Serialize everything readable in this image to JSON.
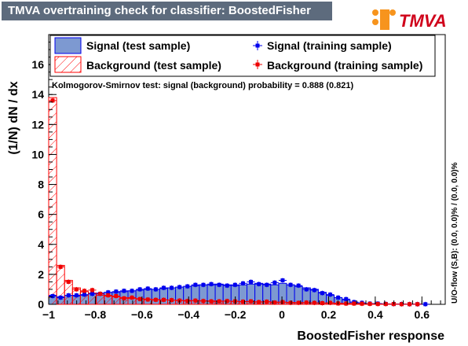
{
  "title": "TMVA overtraining check for classifier: BoostedFisher",
  "logo_text": "TMVA",
  "colors": {
    "signal_fill": "#7d99d1",
    "signal_line": "#0000ee",
    "background_hatch": "#ff0000",
    "training_signal": "#0000ee",
    "training_background": "#ee0000",
    "title_bg": "#5d6b7d"
  },
  "chart_data": {
    "type": "bar",
    "xlabel": "BoostedFisher response",
    "ylabel": "(1/N) dN / dx",
    "xlim": [
      -1.0,
      0.7
    ],
    "ylim": [
      0,
      18
    ],
    "xticks": [
      -1,
      -0.8,
      -0.6,
      -0.4,
      -0.2,
      0,
      0.2,
      0.4,
      0.6
    ],
    "xtick_labels": [
      "−1",
      "−0.8",
      "−0.6",
      "−0.4",
      "−0.2",
      "0",
      "0.2",
      "0.4",
      "0.6"
    ],
    "yticks": [
      0,
      2,
      4,
      6,
      8,
      10,
      12,
      14,
      16
    ],
    "ytick_labels": [
      "0",
      "2",
      "4",
      "6",
      "8",
      "10",
      "12",
      "14",
      "16"
    ],
    "bins": {
      "start": -1.0,
      "width": 0.034,
      "count": 50
    },
    "legend_position": "top",
    "legend": [
      {
        "label": "Signal (test sample)",
        "style": "filled"
      },
      {
        "label": "Signal (training sample)",
        "style": "marker-blue"
      },
      {
        "label": "Background (test sample)",
        "style": "hatched"
      },
      {
        "label": "Background (training sample)",
        "style": "marker-red"
      }
    ],
    "ks_text": "Kolmogorov-Smirnov test: signal (background) probability = 0.888 (0.821)",
    "side_text": "U/O-flow (S,B): (0.0, 0.0)% / (0.0, 0.0)%",
    "series": [
      {
        "name": "Signal (test sample)",
        "values": [
          0.6,
          0.5,
          0.6,
          0.55,
          0.6,
          0.7,
          0.75,
          0.8,
          0.8,
          0.85,
          0.9,
          0.95,
          1.0,
          1.0,
          1.05,
          1.1,
          1.15,
          1.2,
          1.25,
          1.3,
          1.3,
          1.35,
          1.3,
          1.25,
          1.3,
          1.35,
          1.4,
          1.35,
          1.3,
          1.4,
          1.3,
          1.2,
          1.1,
          1.0,
          0.8,
          0.6,
          0.45,
          0.3,
          0.15,
          0.08,
          0.05,
          0.04,
          0.03,
          0.02,
          0.02,
          0.01,
          0.01,
          0.0,
          0.0,
          0.0
        ]
      },
      {
        "name": "Signal (training sample)",
        "values": [
          0.55,
          0.45,
          0.6,
          0.6,
          0.65,
          0.7,
          0.7,
          0.8,
          0.85,
          0.9,
          0.9,
          1.0,
          1.05,
          1.0,
          1.1,
          1.1,
          1.15,
          1.2,
          1.3,
          1.3,
          1.35,
          1.3,
          1.25,
          1.3,
          1.4,
          1.5,
          1.35,
          1.3,
          1.45,
          1.6,
          1.3,
          1.25,
          1.0,
          0.95,
          0.75,
          0.65,
          0.45,
          0.35,
          0.15,
          0.1,
          0.05,
          0.05,
          0.03,
          0.02,
          0.02,
          0.01,
          0.01,
          0.01,
          0.0,
          0.0
        ]
      },
      {
        "name": "Background (test sample)",
        "values": [
          13.8,
          2.6,
          1.6,
          1.1,
          0.85,
          0.75,
          0.6,
          0.55,
          0.5,
          0.45,
          0.4,
          0.38,
          0.35,
          0.32,
          0.3,
          0.28,
          0.27,
          0.26,
          0.25,
          0.24,
          0.23,
          0.22,
          0.21,
          0.2,
          0.19,
          0.18,
          0.17,
          0.16,
          0.15,
          0.14,
          0.13,
          0.12,
          0.11,
          0.1,
          0.09,
          0.08,
          0.07,
          0.06,
          0.05,
          0.04,
          0.03,
          0.03,
          0.02,
          0.02,
          0.01,
          0.01,
          0.01,
          0.0,
          0.0,
          0.0
        ]
      },
      {
        "name": "Background (training sample)",
        "values": [
          13.6,
          2.5,
          1.5,
          1.0,
          0.9,
          0.95,
          0.7,
          0.6,
          0.55,
          0.4,
          0.45,
          0.35,
          0.32,
          0.3,
          0.3,
          0.28,
          0.25,
          0.22,
          0.25,
          0.22,
          0.2,
          0.2,
          0.22,
          0.2,
          0.18,
          0.2,
          0.15,
          0.18,
          0.12,
          0.15,
          0.1,
          0.1,
          0.12,
          0.1,
          0.08,
          0.1,
          0.06,
          0.05,
          0.05,
          0.04,
          0.03,
          0.02,
          0.02,
          0.02,
          0.01,
          0.01,
          0.01,
          0.0,
          0.0,
          0.0
        ]
      }
    ]
  }
}
